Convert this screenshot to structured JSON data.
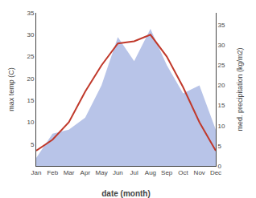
{
  "chart_data": {
    "type": "line",
    "categories": [
      "Jan",
      "Feb",
      "Mar",
      "Apr",
      "May",
      "Jun",
      "Jul",
      "Aug",
      "Sep",
      "Oct",
      "Nov",
      "Dec"
    ],
    "xlabel": "date (month)",
    "ylabel": "max temp (C)",
    "y2label": "med. precipitation (kg/m2)",
    "series": [
      {
        "type": "area",
        "axis": "y2",
        "color": "#b8c4e8",
        "values": [
          2,
          8,
          9,
          12,
          20,
          32,
          26,
          34,
          25,
          18,
          20,
          9
        ]
      },
      {
        "type": "line",
        "color": "#c0392b",
        "values": [
          3.5,
          6,
          10,
          17,
          23,
          28,
          28.5,
          30,
          25,
          18,
          10,
          3.5
        ]
      }
    ],
    "ylim": [
      0,
      35
    ],
    "yticks": [
      5,
      10,
      15,
      20,
      25,
      30,
      35
    ],
    "y2lim": [
      0,
      38
    ],
    "y2ticks": [
      0,
      5,
      10,
      15,
      20,
      25,
      30,
      35
    ],
    "grid": false
  }
}
